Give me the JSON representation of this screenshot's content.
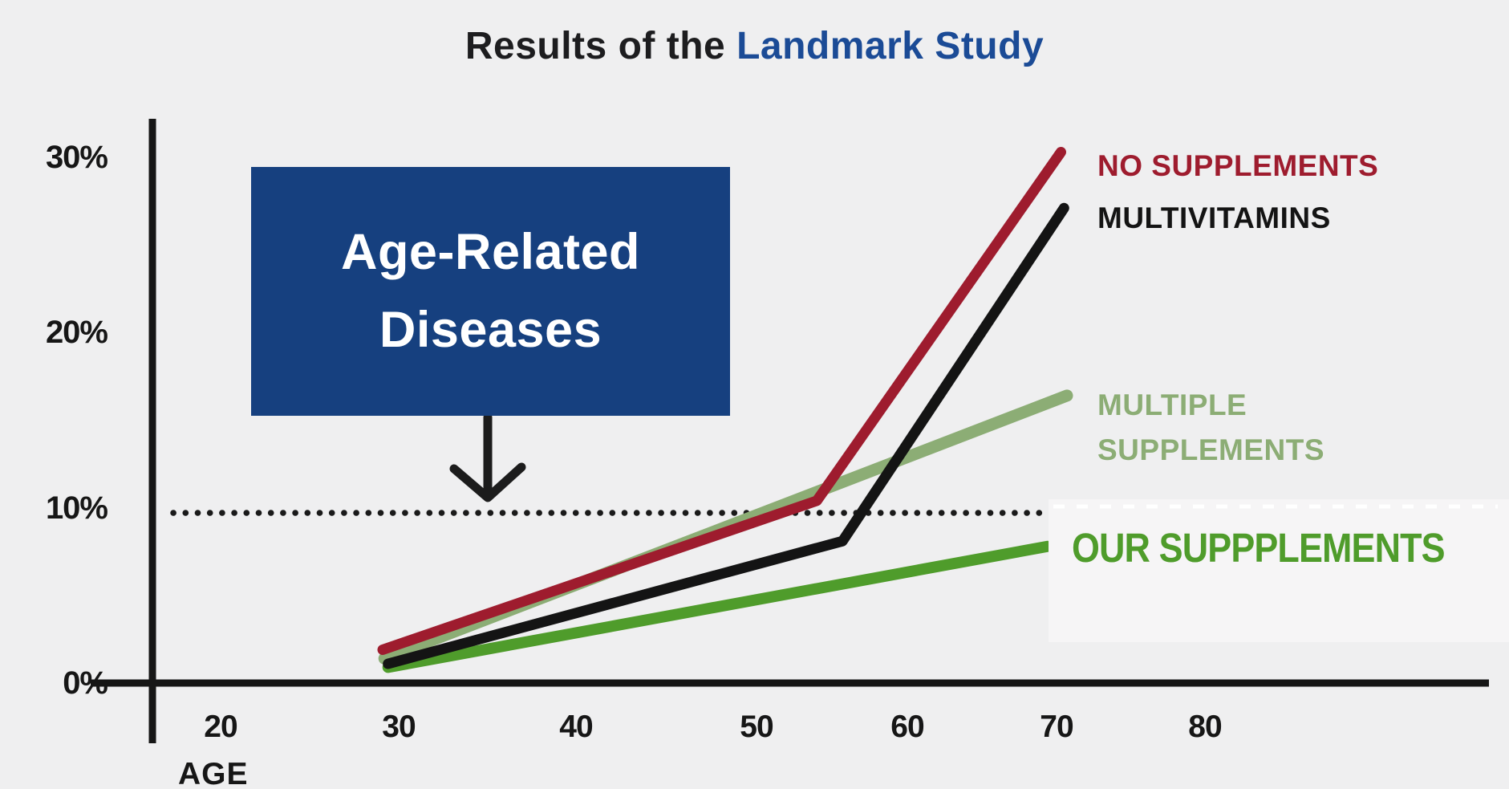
{
  "title": {
    "prefix": "Results of the",
    "highlight": "Landmark Study"
  },
  "axis": {
    "x_label": "AGE"
  },
  "chart_data": {
    "type": "line",
    "title": "Results of the Landmark Study",
    "xlabel": "AGE",
    "ylabel": "",
    "x_ticks": [
      20,
      30,
      40,
      50,
      60,
      70,
      80
    ],
    "y_tick_values": [
      0,
      10,
      20,
      30
    ],
    "y_tick_labels": [
      "0%",
      "10%",
      "20%",
      "30%"
    ],
    "xlim": [
      15,
      88
    ],
    "ylim": [
      0,
      32
    ],
    "grid": false,
    "legend_position": "right-of-line-ends",
    "reference_line": {
      "y": 10,
      "style": "dotted",
      "color": "#1a1a1a"
    },
    "annotation": {
      "line1": "Age-Related",
      "line2": "Diseases",
      "box_color": "#16407f",
      "text_color": "#ffffff",
      "arrow": "down-from-box-to-10%-line"
    },
    "series": [
      {
        "name": "NO SUPPLEMENTS",
        "color": "#9e1c2e",
        "stroke_width": 13,
        "points": [
          [
            29.1,
            1.9
          ],
          [
            54.0,
            10.4
          ],
          [
            70.3,
            30.3
          ]
        ]
      },
      {
        "name": "MULTIVITAMINS",
        "color": "#141414",
        "stroke_width": 13,
        "points": [
          [
            29.4,
            1.1
          ],
          [
            55.7,
            8.1
          ],
          [
            70.5,
            27.1
          ]
        ]
      },
      {
        "name": "MULTIPLE SUPPLEMENTS",
        "color": "#8cad75",
        "stroke_width": 15,
        "points": [
          [
            29.2,
            1.4
          ],
          [
            70.7,
            16.4
          ]
        ]
      },
      {
        "name": "OUR SUPPPLEMENTS",
        "color": "#4f9c2b",
        "stroke_width": 14,
        "points": [
          [
            29.4,
            0.9
          ],
          [
            69.4,
            7.8
          ]
        ]
      }
    ]
  }
}
